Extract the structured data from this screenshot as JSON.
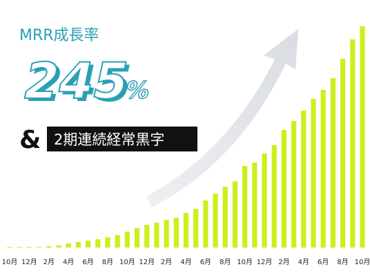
{
  "chart_data": {
    "type": "bar",
    "title": "MRR成長率",
    "headline": {
      "number": "245",
      "unit": "%"
    },
    "connector": "&",
    "badge": "2期連続経常黒字",
    "categories": [
      "10月",
      null,
      "12月",
      null,
      "2月",
      null,
      "4月",
      null,
      "6月",
      null,
      "8月",
      null,
      "10月",
      null,
      "12月",
      null,
      "2月",
      null,
      "4月",
      null,
      "6月",
      null,
      "8月",
      null,
      "10月",
      null,
      "12月",
      null,
      "2月",
      null,
      "4月",
      null,
      "6月",
      null,
      "8月",
      null,
      "10月"
    ],
    "values": [
      1,
      1,
      1,
      1,
      2,
      3,
      6,
      8,
      10,
      12,
      15,
      18,
      23,
      28,
      33,
      36,
      40,
      43,
      50,
      56,
      68,
      78,
      88,
      96,
      118,
      123,
      136,
      148,
      170,
      183,
      198,
      215,
      228,
      245,
      273,
      301,
      320
    ],
    "color": "#cdef1c"
  }
}
